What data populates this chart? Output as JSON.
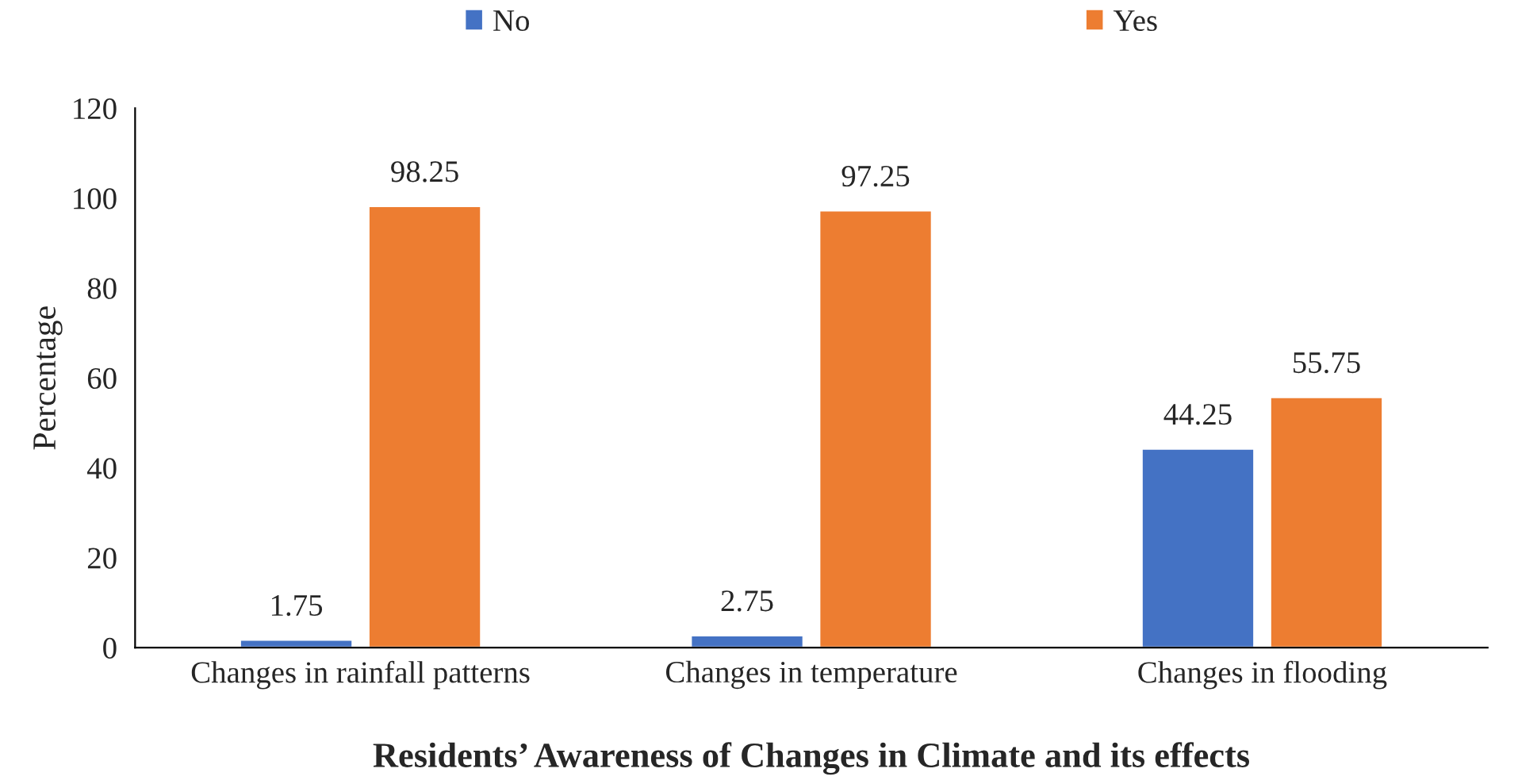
{
  "chart_data": {
    "type": "bar",
    "xlabel": "Residents’ Awareness of Changes in Climate and its effects",
    "ylabel": "Percentage",
    "categories": [
      "Changes in rainfall patterns",
      "Changes in temperature",
      "Changes in flooding"
    ],
    "series": [
      {
        "name": "No",
        "color": "#4472c4",
        "values": [
          1.75,
          2.75,
          44.25
        ]
      },
      {
        "name": "Yes",
        "color": "#ed7d31",
        "values": [
          98.25,
          97.25,
          55.75
        ]
      }
    ],
    "ylim": [
      0,
      120
    ],
    "yticks": [
      0,
      20,
      40,
      60,
      80,
      100,
      120
    ],
    "data_labels": true,
    "grid": false,
    "legend": "top"
  }
}
